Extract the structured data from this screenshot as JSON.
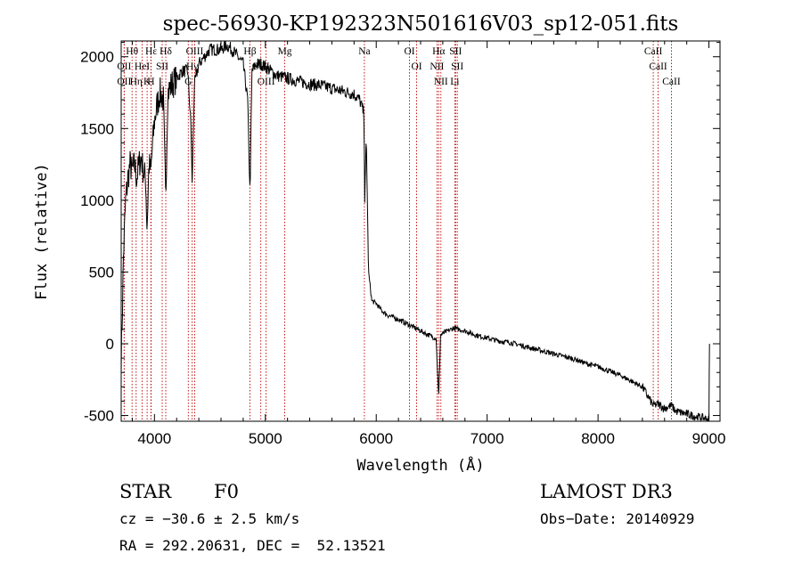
{
  "chart_data": {
    "type": "line",
    "title": "spec-56930-KP192323N501616V03_sp12-051.fits",
    "xlabel": "Wavelength (Å)",
    "ylabel": "Flux (relative)",
    "xlim": [
      3700,
      9100
    ],
    "ylim": [
      -540,
      2110
    ],
    "xticks": [
      4000,
      5000,
      6000,
      7000,
      8000,
      9000
    ],
    "yticks": [
      -500,
      0,
      500,
      1000,
      1500,
      2000
    ],
    "spectrum_keypoints": {
      "x": [
        3700,
        3710,
        3720,
        3740,
        3760,
        3780,
        3800,
        3820,
        3840,
        3860,
        3880,
        3900,
        3920,
        3933,
        3950,
        3968,
        3980,
        4000,
        4020,
        4050,
        4080,
        4101,
        4120,
        4150,
        4200,
        4250,
        4300,
        4330,
        4340,
        4360,
        4400,
        4450,
        4500,
        4550,
        4600,
        4650,
        4700,
        4750,
        4800,
        4840,
        4861,
        4880,
        4920,
        4960,
        5000,
        5050,
        5100,
        5150,
        5200,
        5300,
        5400,
        5500,
        5600,
        5700,
        5800,
        5850,
        5890,
        5896,
        5910,
        5930,
        5960,
        6000,
        6050,
        6100,
        6200,
        6300,
        6400,
        6500,
        6540,
        6563,
        6580,
        6620,
        6700,
        6800,
        6900,
        7000,
        7100,
        7200,
        7300,
        7400,
        7500,
        7600,
        7700,
        7800,
        7900,
        8000,
        8100,
        8200,
        8300,
        8400,
        8498,
        8542,
        8600,
        8662,
        8700,
        8800,
        8900,
        8960,
        9000,
        9005
      ],
      "y": [
        -100,
        200,
        600,
        1000,
        1150,
        1250,
        1200,
        1250,
        1150,
        1250,
        1300,
        1200,
        1150,
        800,
        1250,
        1200,
        1350,
        1550,
        1650,
        1750,
        1700,
        1000,
        1750,
        1800,
        1850,
        1900,
        1900,
        1500,
        1100,
        1800,
        1950,
        2000,
        2050,
        2050,
        2050,
        2080,
        2050,
        2000,
        1950,
        1700,
        1050,
        1900,
        1950,
        1950,
        1930,
        1900,
        1870,
        1860,
        1850,
        1830,
        1810,
        1800,
        1780,
        1760,
        1740,
        1700,
        1600,
        1000,
        1450,
        500,
        300,
        280,
        230,
        200,
        170,
        130,
        90,
        50,
        40,
        -380,
        60,
        80,
        110,
        90,
        60,
        40,
        20,
        10,
        -10,
        -30,
        -50,
        -70,
        -90,
        -110,
        -140,
        -160,
        -190,
        -220,
        -260,
        -300,
        -430,
        -420,
        -450,
        -430,
        -470,
        -490,
        -510,
        -520,
        -530,
        0
      ]
    },
    "emission_lines": [
      {
        "label": "Hθ",
        "x": 3798
      },
      {
        "label": "OII",
        "x": 3727
      },
      {
        "label": "OII",
        "x": 3727
      },
      {
        "label": "HeI",
        "x": 3889
      },
      {
        "label": "Hε",
        "x": 3970
      },
      {
        "label": "Hη",
        "x": 3835
      },
      {
        "label": "K",
        "x": 3934
      },
      {
        "label": "H",
        "x": 3968
      },
      {
        "label": "SII",
        "x": 4070
      },
      {
        "label": "Hδ",
        "x": 4102
      },
      {
        "label": "OIII",
        "x": 4363
      },
      {
        "label": "Hγ",
        "x": 4340
      },
      {
        "label": "G",
        "x": 4305
      },
      {
        "label": "Hβ",
        "x": 4861
      },
      {
        "label": "OIII",
        "x": 4959
      },
      {
        "label": "OIII",
        "x": 5007
      },
      {
        "label": "Mg",
        "x": 5175
      },
      {
        "label": "Na",
        "x": 5893
      },
      {
        "label": "OI",
        "x": 6300
      },
      {
        "label": "OI",
        "x": 6364
      },
      {
        "label": "Hα",
        "x": 6563
      },
      {
        "label": "NII",
        "x": 6548
      },
      {
        "label": "NII",
        "x": 6583
      },
      {
        "label": "SII",
        "x": 6716
      },
      {
        "label": "SII",
        "x": 6731
      },
      {
        "label": "Li",
        "x": 6708
      },
      {
        "label": "CaII",
        "x": 8498
      },
      {
        "label": "CaII",
        "x": 8542
      },
      {
        "label": "CaII",
        "x": 8662
      }
    ]
  },
  "info": {
    "class": "STAR",
    "subclass": "F0",
    "cz": "cz = −30.6 ± 2.5 km/s",
    "release": "LAMOST DR3",
    "obs_date": "Obs−Date: 20140929",
    "coords": "RA = 292.20631, DEC =  52.13521"
  }
}
